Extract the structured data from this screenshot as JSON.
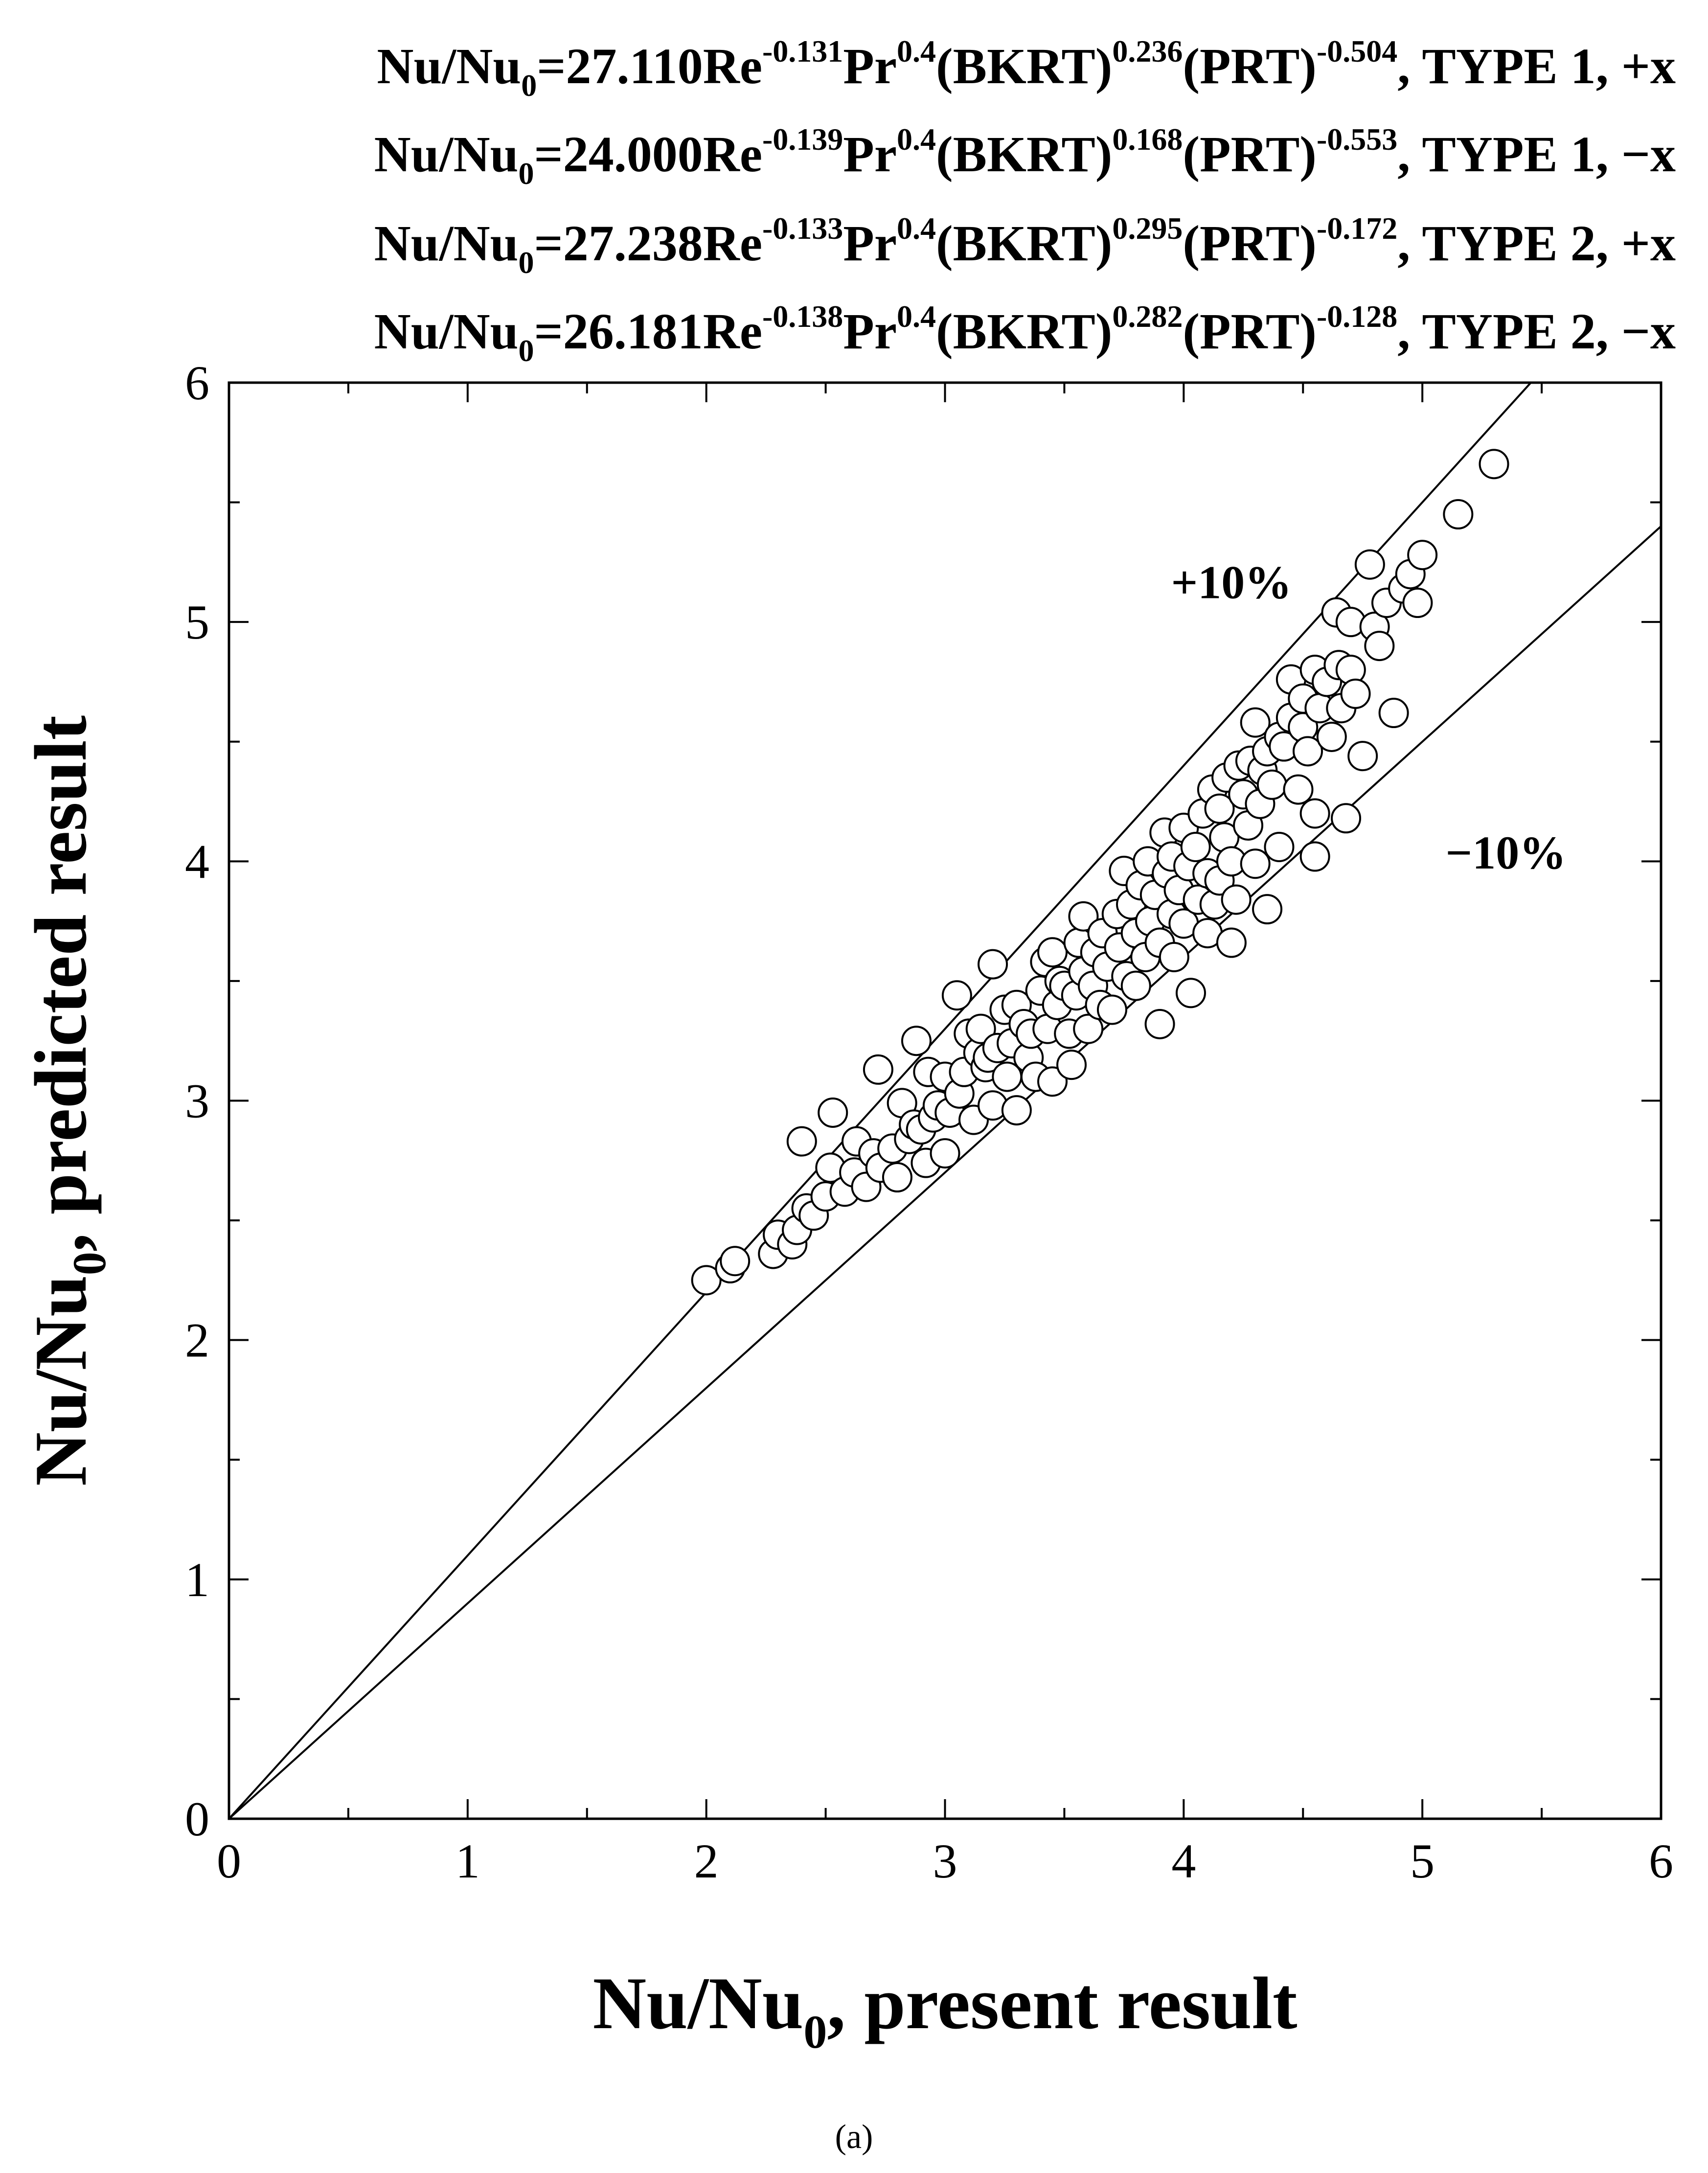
{
  "chart_data": {
    "type": "scatter",
    "title_lines": [
      {
        "parts": [
          {
            "t": "Nu/Nu"
          },
          {
            "sub": "0"
          },
          {
            "t": "=27.110Re"
          },
          {
            "sup": "-0.131"
          },
          {
            "t": "Pr"
          },
          {
            "sup": "0.4"
          },
          {
            "t": "(BKRT)"
          },
          {
            "sup": "0.236"
          },
          {
            "t": "(PRT)"
          },
          {
            "sup": "-0.504"
          },
          {
            "t": ", TYPE 1, +x"
          }
        ]
      },
      {
        "parts": [
          {
            "t": "Nu/Nu"
          },
          {
            "sub": "0"
          },
          {
            "t": "=24.000Re"
          },
          {
            "sup": "-0.139"
          },
          {
            "t": "Pr"
          },
          {
            "sup": "0.4"
          },
          {
            "t": "(BKRT)"
          },
          {
            "sup": "0.168"
          },
          {
            "t": "(PRT)"
          },
          {
            "sup": "-0.553"
          },
          {
            "t": ", TYPE 1, −x"
          }
        ]
      },
      {
        "parts": [
          {
            "t": "Nu/Nu"
          },
          {
            "sub": "0"
          },
          {
            "t": "=27.238Re"
          },
          {
            "sup": "-0.133"
          },
          {
            "t": "Pr"
          },
          {
            "sup": "0.4"
          },
          {
            "t": "(BKRT)"
          },
          {
            "sup": "0.295"
          },
          {
            "t": "(PRT)"
          },
          {
            "sup": "-0.172"
          },
          {
            "t": ", TYPE 2, +x"
          }
        ]
      },
      {
        "parts": [
          {
            "t": "Nu/Nu"
          },
          {
            "sub": "0"
          },
          {
            "t": "=26.181Re"
          },
          {
            "sup": "-0.138"
          },
          {
            "t": "Pr"
          },
          {
            "sup": "0.4"
          },
          {
            "t": "(BKRT)"
          },
          {
            "sup": "0.282"
          },
          {
            "t": "(PRT)"
          },
          {
            "sup": "-0.128"
          },
          {
            "t": ", TYPE 2, −x"
          }
        ]
      }
    ],
    "xlabel_main": "Nu/Nu",
    "xlabel_sub": "0",
    "xlabel_rest": ", present result",
    "ylabel_main": "Nu/Nu",
    "ylabel_sub": "0",
    "ylabel_rest": ", predicted result",
    "xlim": [
      0,
      6
    ],
    "ylim": [
      0,
      6
    ],
    "xticks": [
      "0",
      "1",
      "2",
      "3",
      "4",
      "5",
      "6"
    ],
    "yticks": [
      "0",
      "1",
      "2",
      "3",
      "4",
      "5",
      "6"
    ],
    "grid": false,
    "reference_lines": [
      {
        "label": "+10%",
        "factor": 1.1
      },
      {
        "label": "−10%",
        "factor": 0.9
      }
    ],
    "marker": "open-circle",
    "points": [
      [
        2.0,
        2.25
      ],
      [
        2.1,
        2.3
      ],
      [
        2.12,
        2.33
      ],
      [
        2.28,
        2.36
      ],
      [
        2.3,
        2.44
      ],
      [
        2.36,
        2.4
      ],
      [
        2.38,
        2.46
      ],
      [
        2.42,
        2.55
      ],
      [
        2.4,
        2.83
      ],
      [
        2.45,
        2.52
      ],
      [
        2.5,
        2.6
      ],
      [
        2.52,
        2.72
      ],
      [
        2.53,
        2.95
      ],
      [
        2.58,
        2.62
      ],
      [
        2.62,
        2.7
      ],
      [
        2.63,
        2.83
      ],
      [
        2.67,
        2.64
      ],
      [
        2.7,
        2.78
      ],
      [
        2.72,
        3.13
      ],
      [
        2.73,
        2.72
      ],
      [
        2.78,
        2.8
      ],
      [
        2.8,
        2.68
      ],
      [
        2.82,
        2.99
      ],
      [
        2.85,
        2.84
      ],
      [
        2.87,
        2.9
      ],
      [
        2.88,
        3.25
      ],
      [
        2.9,
        2.88
      ],
      [
        2.92,
        2.74
      ],
      [
        2.93,
        3.12
      ],
      [
        2.95,
        2.93
      ],
      [
        2.97,
        2.98
      ],
      [
        3.0,
        2.78
      ],
      [
        3.0,
        3.1
      ],
      [
        3.02,
        2.95
      ],
      [
        3.05,
        3.44
      ],
      [
        3.06,
        3.03
      ],
      [
        3.08,
        3.12
      ],
      [
        3.1,
        3.28
      ],
      [
        3.12,
        2.92
      ],
      [
        3.14,
        3.2
      ],
      [
        3.15,
        3.3
      ],
      [
        3.17,
        3.14
      ],
      [
        3.18,
        3.18
      ],
      [
        3.2,
        2.98
      ],
      [
        3.2,
        3.57
      ],
      [
        3.22,
        3.22
      ],
      [
        3.25,
        3.38
      ],
      [
        3.26,
        3.1
      ],
      [
        3.28,
        3.24
      ],
      [
        3.3,
        3.4
      ],
      [
        3.3,
        2.96
      ],
      [
        3.33,
        3.32
      ],
      [
        3.35,
        3.18
      ],
      [
        3.36,
        3.28
      ],
      [
        3.38,
        3.1
      ],
      [
        3.4,
        3.46
      ],
      [
        3.42,
        3.58
      ],
      [
        3.43,
        3.3
      ],
      [
        3.45,
        3.62
      ],
      [
        3.45,
        3.08
      ],
      [
        3.47,
        3.4
      ],
      [
        3.48,
        3.5
      ],
      [
        3.5,
        3.48
      ],
      [
        3.52,
        3.28
      ],
      [
        3.53,
        3.15
      ],
      [
        3.55,
        3.44
      ],
      [
        3.56,
        3.66
      ],
      [
        3.58,
        3.54
      ],
      [
        3.58,
        3.77
      ],
      [
        3.6,
        3.3
      ],
      [
        3.62,
        3.48
      ],
      [
        3.63,
        3.62
      ],
      [
        3.65,
        3.4
      ],
      [
        3.66,
        3.7
      ],
      [
        3.68,
        3.56
      ],
      [
        3.7,
        3.38
      ],
      [
        3.72,
        3.78
      ],
      [
        3.73,
        3.64
      ],
      [
        3.75,
        3.96
      ],
      [
        3.76,
        3.52
      ],
      [
        3.78,
        3.82
      ],
      [
        3.8,
        3.48
      ],
      [
        3.8,
        3.7
      ],
      [
        3.82,
        3.9
      ],
      [
        3.84,
        3.6
      ],
      [
        3.85,
        4.0
      ],
      [
        3.86,
        3.75
      ],
      [
        3.88,
        3.86
      ],
      [
        3.9,
        3.32
      ],
      [
        3.9,
        3.66
      ],
      [
        3.92,
        4.12
      ],
      [
        3.93,
        3.95
      ],
      [
        3.95,
        3.78
      ],
      [
        3.95,
        4.02
      ],
      [
        3.96,
        3.6
      ],
      [
        3.98,
        3.88
      ],
      [
        4.0,
        4.14
      ],
      [
        4.0,
        3.74
      ],
      [
        4.02,
        3.98
      ],
      [
        4.03,
        3.45
      ],
      [
        4.05,
        4.06
      ],
      [
        4.06,
        3.84
      ],
      [
        4.08,
        4.2
      ],
      [
        4.1,
        3.7
      ],
      [
        4.1,
        3.95
      ],
      [
        4.12,
        4.3
      ],
      [
        4.13,
        3.82
      ],
      [
        4.15,
        4.22
      ],
      [
        4.15,
        3.92
      ],
      [
        4.17,
        4.1
      ],
      [
        4.18,
        4.35
      ],
      [
        4.2,
        3.66
      ],
      [
        4.2,
        4.0
      ],
      [
        4.22,
        3.84
      ],
      [
        4.23,
        4.4
      ],
      [
        4.25,
        4.28
      ],
      [
        4.27,
        4.15
      ],
      [
        4.28,
        4.42
      ],
      [
        4.3,
        3.99
      ],
      [
        4.3,
        4.58
      ],
      [
        4.32,
        4.24
      ],
      [
        4.33,
        4.38
      ],
      [
        4.35,
        3.8
      ],
      [
        4.35,
        4.46
      ],
      [
        4.37,
        4.32
      ],
      [
        4.4,
        4.52
      ],
      [
        4.4,
        4.06
      ],
      [
        4.42,
        4.48
      ],
      [
        4.45,
        4.76
      ],
      [
        4.45,
        4.6
      ],
      [
        4.48,
        4.3
      ],
      [
        4.5,
        4.56
      ],
      [
        4.5,
        4.68
      ],
      [
        4.52,
        4.46
      ],
      [
        4.55,
        4.8
      ],
      [
        4.55,
        4.2
      ],
      [
        4.55,
        4.02
      ],
      [
        4.57,
        4.64
      ],
      [
        4.6,
        4.75
      ],
      [
        4.62,
        4.52
      ],
      [
        4.64,
        5.04
      ],
      [
        4.65,
        4.82
      ],
      [
        4.66,
        4.64
      ],
      [
        4.68,
        4.18
      ],
      [
        4.7,
        5.0
      ],
      [
        4.7,
        4.8
      ],
      [
        4.72,
        4.7
      ],
      [
        4.75,
        4.44
      ],
      [
        4.78,
        5.24
      ],
      [
        4.8,
        4.98
      ],
      [
        4.82,
        4.9
      ],
      [
        4.85,
        5.08
      ],
      [
        4.88,
        4.62
      ],
      [
        4.92,
        5.14
      ],
      [
        4.95,
        5.2
      ],
      [
        4.98,
        5.08
      ],
      [
        5.0,
        5.28
      ],
      [
        5.15,
        5.45
      ],
      [
        5.3,
        5.66
      ]
    ]
  },
  "caption": "(a)"
}
